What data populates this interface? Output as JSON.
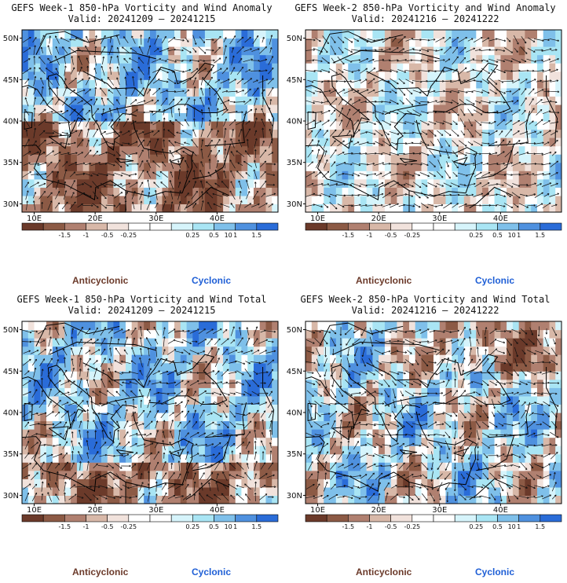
{
  "panels": [
    {
      "title": "GEFS Week-1 850-hPa Vorticity and Wind Anomaly",
      "valid": "Valid: 20241209 – 20241215",
      "variant": "anomaly1"
    },
    {
      "title": "GEFS Week-2 850-hPa Vorticity and Wind Anomaly",
      "valid": "Valid: 20241216 – 20241222",
      "variant": "anomaly2"
    },
    {
      "title": "GEFS Week-1 850-hPa Vorticity and Wind Total",
      "valid": "Valid: 20241209 – 20241215",
      "variant": "total1"
    },
    {
      "title": "GEFS Week-2 850-hPa Vorticity and Wind Total",
      "valid": "Valid: 20241216 – 20241222",
      "variant": "total2"
    }
  ],
  "map": {
    "lon_range": [
      8,
      50
    ],
    "lat_range": [
      29,
      51
    ],
    "lat_ticks": [
      "50N",
      "45N",
      "40N",
      "35N",
      "30N"
    ],
    "lon_ticks": [
      "10E",
      "20E",
      "30E",
      "40E"
    ]
  },
  "colorbar": {
    "colors": [
      "#6b3a2a",
      "#8c5a45",
      "#b08070",
      "#d8b8a8",
      "#f1e2dc",
      "#ffffff",
      "#ffffff",
      "#d6f4fb",
      "#a9e5f4",
      "#7fc0ea",
      "#4f91df",
      "#2a6cd8"
    ],
    "labels": [
      "-1.5",
      "-1",
      "-0.5",
      "-0.25",
      "0.25",
      "0.5",
      "1",
      "1.5"
    ],
    "scale_note": "10"
  },
  "legend": {
    "anticyclonic": "Anticyclonic",
    "cyclonic": "Cyclonic",
    "anticyclonic_color": "#6b3a2a",
    "cyclonic_color": "#1f5fd6"
  }
}
